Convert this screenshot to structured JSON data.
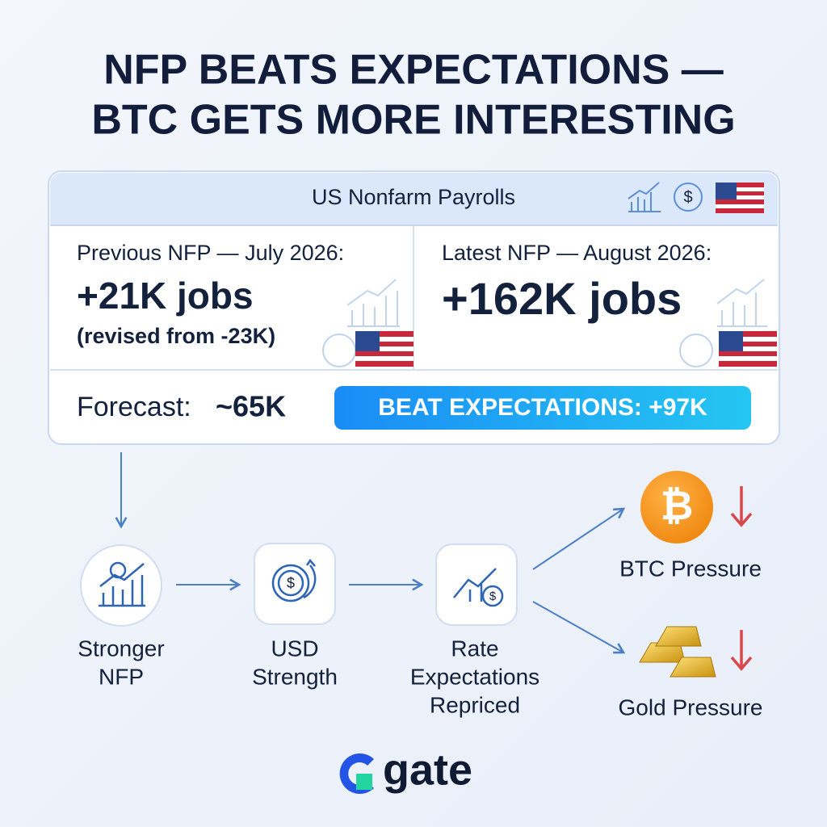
{
  "header": {
    "title_lines": [
      "NFP BEATS EXPECTATIONS —",
      "BTC GETS MORE INTERESTING"
    ]
  },
  "card": {
    "title": "US Nonfarm Payrolls",
    "previous": {
      "label": "Previous NFP — July 2026:",
      "value": "+21K jobs",
      "note": "(revised from -23K)"
    },
    "latest": {
      "label": "Latest NFP — August 2026:",
      "value": "+162K jobs"
    },
    "forecast": {
      "label": "Forecast:",
      "value": "~65K"
    },
    "badge": "BEAT EXPECTATIONS: +97K"
  },
  "flow": {
    "nodes": [
      {
        "label": [
          "Stronger",
          "NFP"
        ]
      },
      {
        "label": [
          "USD",
          "Strength"
        ]
      },
      {
        "label": [
          "Rate",
          "Expectations",
          "Repriced"
        ]
      }
    ],
    "outcomes": [
      {
        "label": "BTC Pressure"
      },
      {
        "label": "Gold Pressure"
      }
    ]
  },
  "footer": {
    "logo": "gate"
  }
}
